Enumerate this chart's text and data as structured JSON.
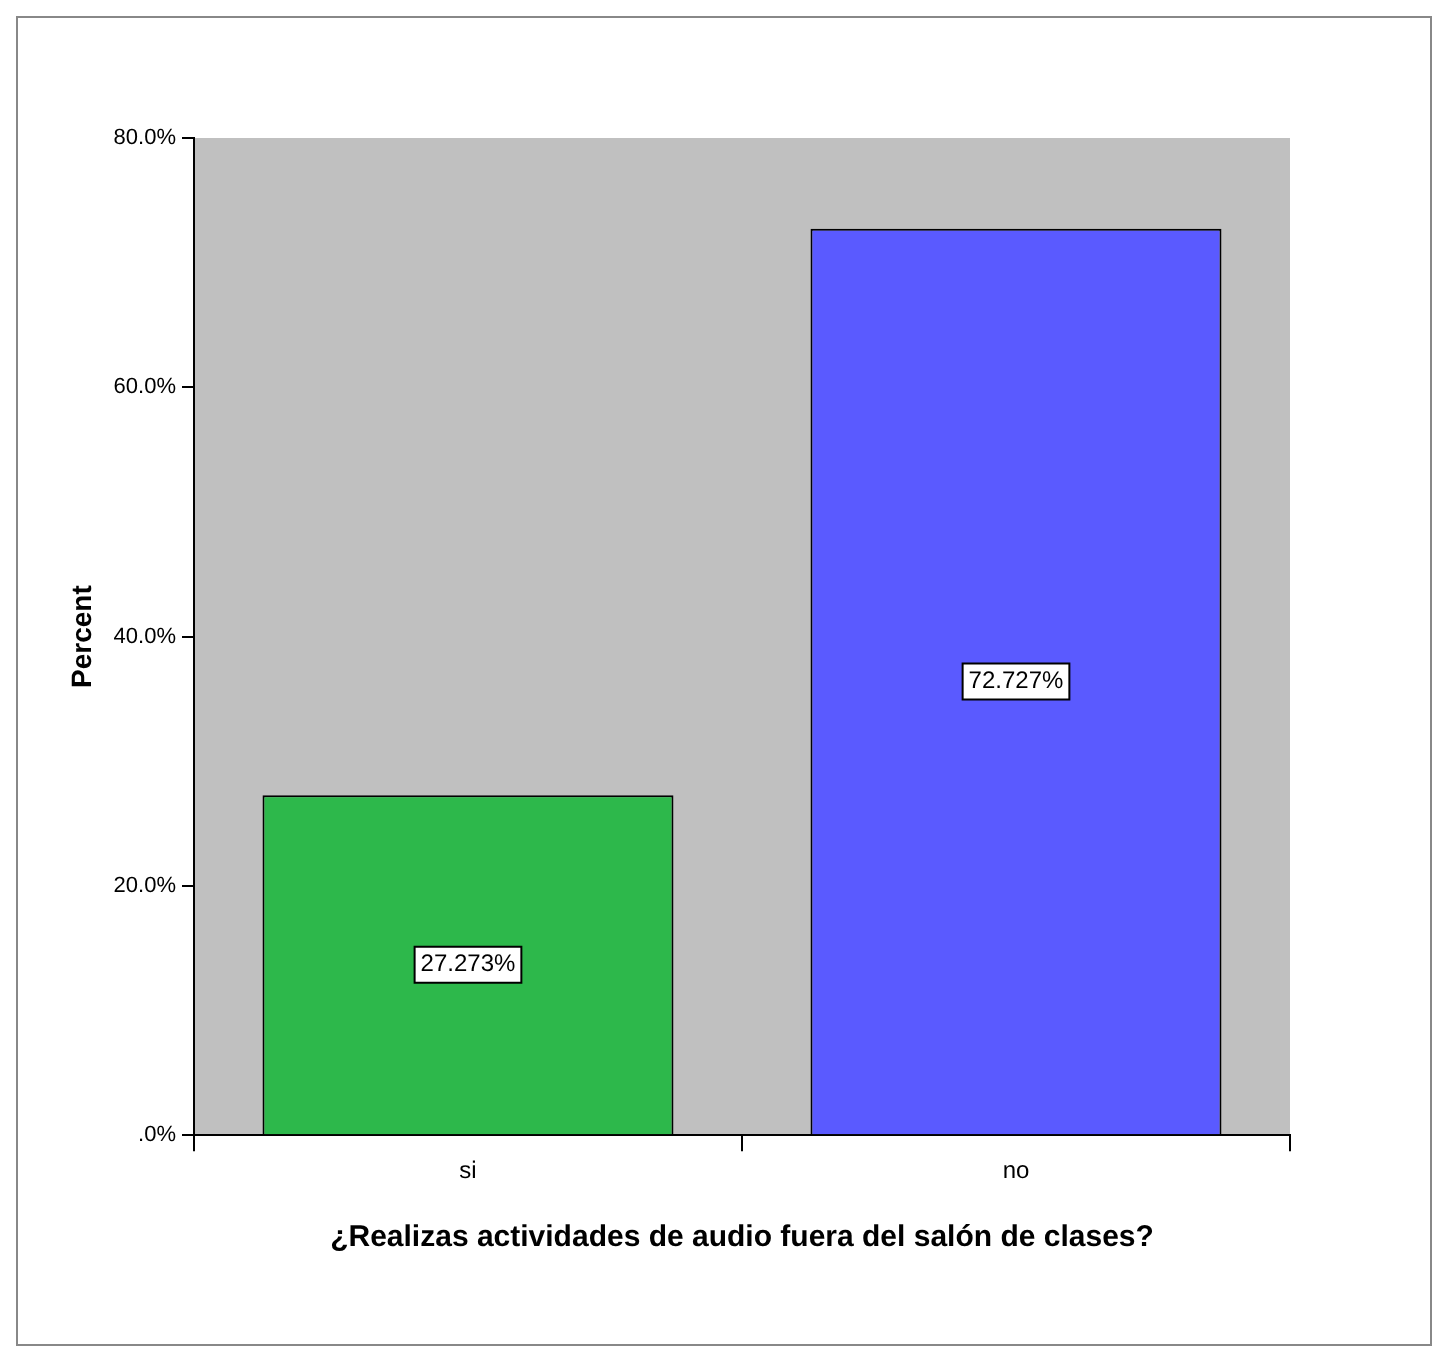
{
  "chart_data": {
    "type": "bar",
    "xlabel": "¿Realizas actividades de audio fuera del salón de clases?",
    "ylabel": "Percent",
    "categories": [
      "si",
      "no"
    ],
    "values": [
      27.273,
      72.727
    ],
    "colors": [
      "#2db84b",
      "#5a5aff"
    ],
    "value_labels": [
      "27.273%",
      "72.727%"
    ],
    "ylim": [
      0,
      80
    ],
    "yticks": [
      {
        "value": 0,
        "label": ".0%"
      },
      {
        "value": 20,
        "label": "20.0%"
      },
      {
        "value": 40,
        "label": "40.0%"
      },
      {
        "value": 60,
        "label": "60.0%"
      },
      {
        "value": 80,
        "label": "80.0%"
      }
    ],
    "grid": false,
    "legend": false
  }
}
